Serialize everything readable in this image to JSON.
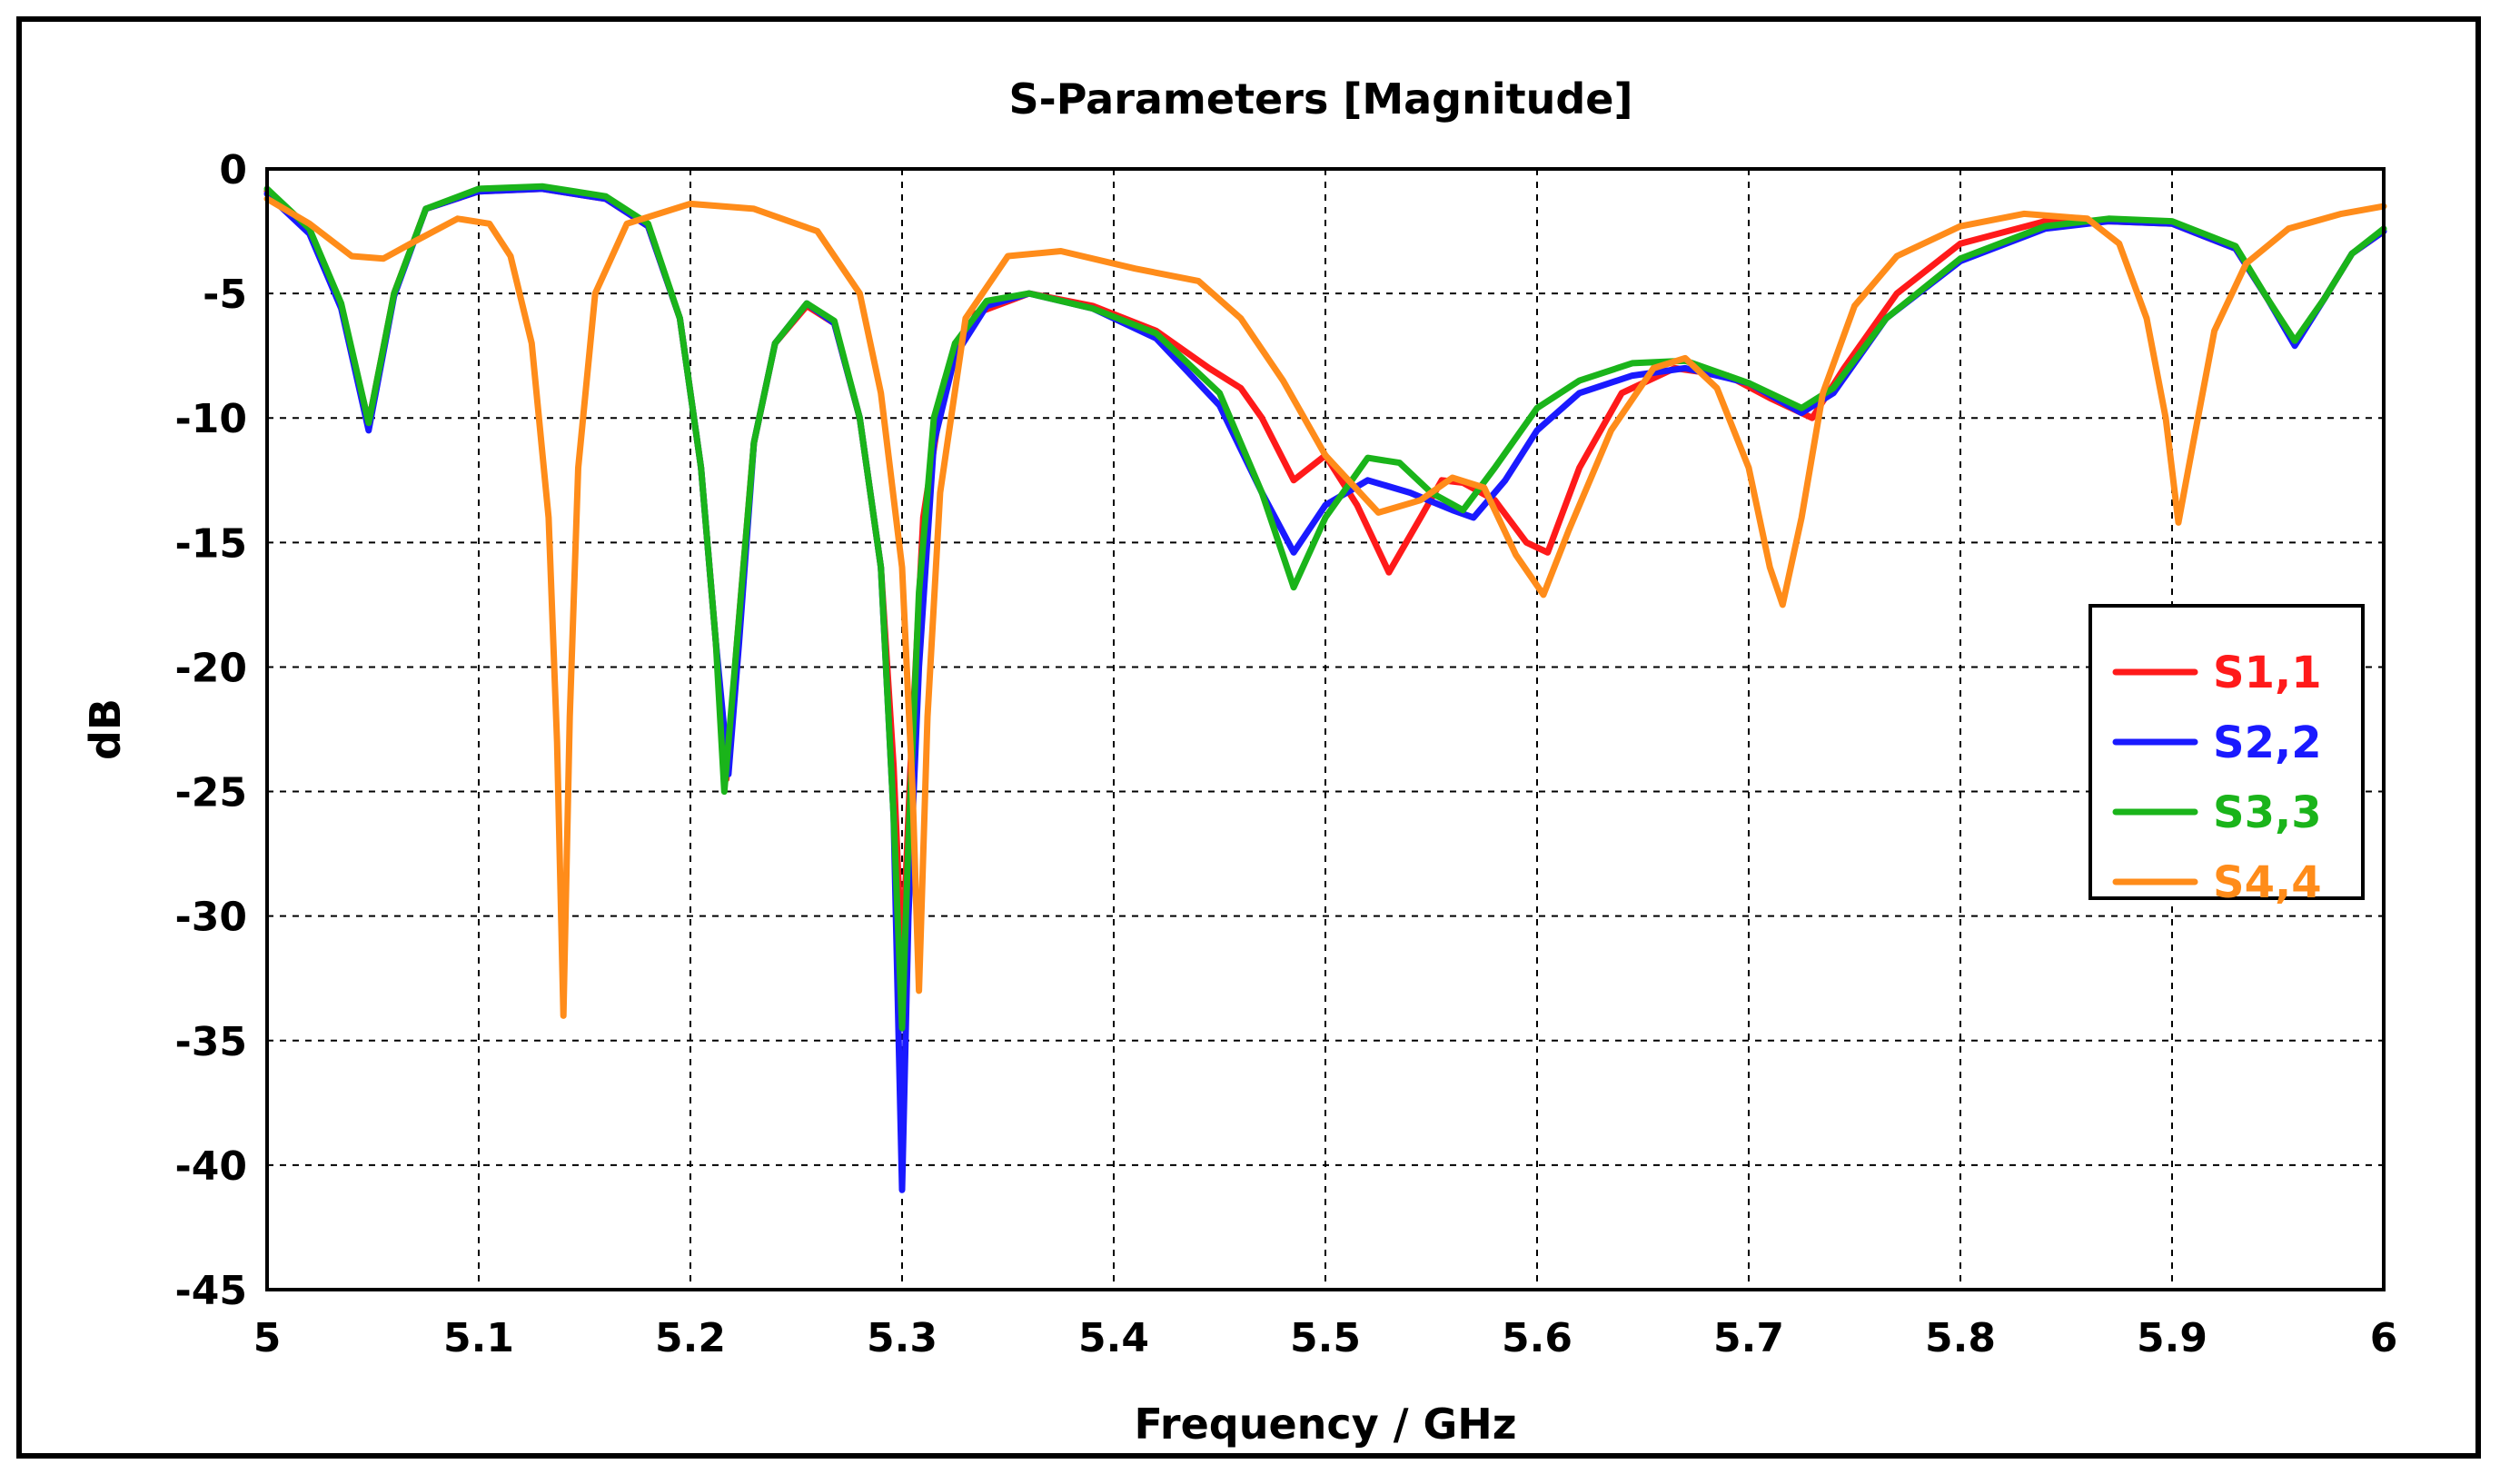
{
  "chart_data": {
    "type": "line",
    "title": "S-Parameters [Magnitude]",
    "xlabel": "Frequency / GHz",
    "ylabel": "dB",
    "xlim": [
      5,
      6
    ],
    "ylim": [
      -45,
      0
    ],
    "xticks": [
      5,
      5.1,
      5.2,
      5.3,
      5.4,
      5.5,
      5.6,
      5.7,
      5.8,
      5.9,
      6
    ],
    "xtick_labels": [
      "5",
      "5.1",
      "5.2",
      "5.3",
      "5.4",
      "5.5",
      "5.6",
      "5.7",
      "5.8",
      "5.9",
      "6"
    ],
    "yticks": [
      0,
      -5,
      -10,
      -15,
      -20,
      -25,
      -30,
      -35,
      -40,
      -45
    ],
    "ytick_labels": [
      "0",
      "-5",
      "-10",
      "-15",
      "-20",
      "-25",
      "-30",
      "-35",
      "-40",
      "-45"
    ],
    "grid": true,
    "legend_position": "right",
    "series": [
      {
        "name": "S1,1",
        "color": "#ff1a1a",
        "points": [
          [
            5,
            -0.9
          ],
          [
            5.02,
            -2.5
          ],
          [
            5.035,
            -5.5
          ],
          [
            5.048,
            -10.2
          ],
          [
            5.06,
            -5
          ],
          [
            5.075,
            -1.6
          ],
          [
            5.1,
            -0.9
          ],
          [
            5.13,
            -0.8
          ],
          [
            5.16,
            -1.2
          ],
          [
            5.18,
            -2.3
          ],
          [
            5.195,
            -6
          ],
          [
            5.205,
            -12
          ],
          [
            5.212,
            -19
          ],
          [
            5.217,
            -24.5
          ],
          [
            5.222,
            -19
          ],
          [
            5.23,
            -11
          ],
          [
            5.24,
            -7
          ],
          [
            5.255,
            -5.5
          ],
          [
            5.268,
            -6.2
          ],
          [
            5.28,
            -10
          ],
          [
            5.29,
            -16
          ],
          [
            5.296,
            -24
          ],
          [
            5.3,
            -32
          ],
          [
            5.304,
            -24
          ],
          [
            5.31,
            -14
          ],
          [
            5.32,
            -8.5
          ],
          [
            5.335,
            -5.8
          ],
          [
            5.36,
            -5
          ],
          [
            5.39,
            -5.5
          ],
          [
            5.42,
            -6.5
          ],
          [
            5.445,
            -8
          ],
          [
            5.46,
            -8.8
          ],
          [
            5.47,
            -10
          ],
          [
            5.485,
            -12.5
          ],
          [
            5.5,
            -11.5
          ],
          [
            5.515,
            -13.5
          ],
          [
            5.53,
            -16.2
          ],
          [
            5.545,
            -14
          ],
          [
            5.555,
            -12.5
          ],
          [
            5.565,
            -12.6
          ],
          [
            5.58,
            -13.3
          ],
          [
            5.595,
            -15
          ],
          [
            5.605,
            -15.4
          ],
          [
            5.62,
            -12
          ],
          [
            5.64,
            -9
          ],
          [
            5.665,
            -8
          ],
          [
            5.69,
            -8.3
          ],
          [
            5.71,
            -9.2
          ],
          [
            5.73,
            -10
          ],
          [
            5.745,
            -8
          ],
          [
            5.77,
            -5
          ],
          [
            5.8,
            -3
          ],
          [
            5.84,
            -2.1
          ],
          [
            5.87,
            -2.1
          ],
          [
            5.9,
            -2.2
          ],
          [
            5.93,
            -3.2
          ],
          [
            5.945,
            -5.2
          ],
          [
            5.958,
            -7
          ],
          [
            5.972,
            -5.2
          ],
          [
            5.985,
            -3.4
          ],
          [
            6,
            -2.5
          ]
        ]
      },
      {
        "name": "S2,2",
        "color": "#1a1aff",
        "points": [
          [
            5,
            -1
          ],
          [
            5.02,
            -2.6
          ],
          [
            5.035,
            -5.6
          ],
          [
            5.048,
            -10.5
          ],
          [
            5.06,
            -5.1
          ],
          [
            5.075,
            -1.6
          ],
          [
            5.1,
            -0.9
          ],
          [
            5.13,
            -0.8
          ],
          [
            5.16,
            -1.2
          ],
          [
            5.18,
            -2.3
          ],
          [
            5.195,
            -6
          ],
          [
            5.205,
            -12
          ],
          [
            5.212,
            -19
          ],
          [
            5.218,
            -24.3
          ],
          [
            5.223,
            -19
          ],
          [
            5.23,
            -11
          ],
          [
            5.24,
            -7
          ],
          [
            5.255,
            -5.4
          ],
          [
            5.268,
            -6.2
          ],
          [
            5.28,
            -10
          ],
          [
            5.29,
            -16
          ],
          [
            5.296,
            -26
          ],
          [
            5.3,
            -41
          ],
          [
            5.303,
            -30
          ],
          [
            5.308,
            -20
          ],
          [
            5.315,
            -11
          ],
          [
            5.325,
            -7.5
          ],
          [
            5.34,
            -5.5
          ],
          [
            5.36,
            -5
          ],
          [
            5.39,
            -5.6
          ],
          [
            5.42,
            -6.8
          ],
          [
            5.45,
            -9.5
          ],
          [
            5.47,
            -13
          ],
          [
            5.485,
            -15.4
          ],
          [
            5.5,
            -13.5
          ],
          [
            5.52,
            -12.5
          ],
          [
            5.54,
            -13
          ],
          [
            5.56,
            -13.7
          ],
          [
            5.57,
            -14
          ],
          [
            5.585,
            -12.5
          ],
          [
            5.6,
            -10.5
          ],
          [
            5.62,
            -9
          ],
          [
            5.645,
            -8.3
          ],
          [
            5.67,
            -8
          ],
          [
            5.7,
            -8.6
          ],
          [
            5.725,
            -9.8
          ],
          [
            5.74,
            -9
          ],
          [
            5.765,
            -6
          ],
          [
            5.8,
            -3.7
          ],
          [
            5.84,
            -2.4
          ],
          [
            5.87,
            -2.1
          ],
          [
            5.9,
            -2.2
          ],
          [
            5.93,
            -3.2
          ],
          [
            5.945,
            -5.2
          ],
          [
            5.958,
            -7.1
          ],
          [
            5.972,
            -5.2
          ],
          [
            5.985,
            -3.4
          ],
          [
            6,
            -2.5
          ]
        ]
      },
      {
        "name": "S3,3",
        "color": "#1ab41a",
        "points": [
          [
            5,
            -0.8
          ],
          [
            5.02,
            -2.4
          ],
          [
            5.035,
            -5.4
          ],
          [
            5.048,
            -10.2
          ],
          [
            5.06,
            -5
          ],
          [
            5.075,
            -1.6
          ],
          [
            5.1,
            -0.8
          ],
          [
            5.13,
            -0.7
          ],
          [
            5.16,
            -1.1
          ],
          [
            5.18,
            -2.2
          ],
          [
            5.195,
            -6
          ],
          [
            5.205,
            -12
          ],
          [
            5.212,
            -19
          ],
          [
            5.216,
            -25
          ],
          [
            5.222,
            -19
          ],
          [
            5.23,
            -11
          ],
          [
            5.24,
            -7
          ],
          [
            5.255,
            -5.4
          ],
          [
            5.268,
            -6.1
          ],
          [
            5.28,
            -10
          ],
          [
            5.29,
            -16
          ],
          [
            5.296,
            -26
          ],
          [
            5.3,
            -34.5
          ],
          [
            5.303,
            -27
          ],
          [
            5.308,
            -17
          ],
          [
            5.315,
            -10
          ],
          [
            5.325,
            -7
          ],
          [
            5.34,
            -5.3
          ],
          [
            5.36,
            -5
          ],
          [
            5.39,
            -5.6
          ],
          [
            5.42,
            -6.6
          ],
          [
            5.45,
            -9
          ],
          [
            5.47,
            -13
          ],
          [
            5.485,
            -16.8
          ],
          [
            5.5,
            -14
          ],
          [
            5.52,
            -11.6
          ],
          [
            5.535,
            -11.8
          ],
          [
            5.55,
            -13
          ],
          [
            5.565,
            -13.7
          ],
          [
            5.58,
            -12
          ],
          [
            5.6,
            -9.6
          ],
          [
            5.62,
            -8.5
          ],
          [
            5.645,
            -7.8
          ],
          [
            5.67,
            -7.7
          ],
          [
            5.7,
            -8.6
          ],
          [
            5.725,
            -9.6
          ],
          [
            5.74,
            -8.8
          ],
          [
            5.765,
            -6
          ],
          [
            5.8,
            -3.6
          ],
          [
            5.84,
            -2.3
          ],
          [
            5.87,
            -2
          ],
          [
            5.9,
            -2.1
          ],
          [
            5.93,
            -3.1
          ],
          [
            5.945,
            -5.2
          ],
          [
            5.958,
            -6.9
          ],
          [
            5.972,
            -5.2
          ],
          [
            5.985,
            -3.4
          ],
          [
            6,
            -2.4
          ]
        ]
      },
      {
        "name": "S4,4",
        "color": "#ff8c1a",
        "points": [
          [
            5,
            -1.2
          ],
          [
            5.02,
            -2.2
          ],
          [
            5.04,
            -3.5
          ],
          [
            5.055,
            -3.6
          ],
          [
            5.07,
            -2.9
          ],
          [
            5.09,
            -2
          ],
          [
            5.105,
            -2.2
          ],
          [
            5.115,
            -3.5
          ],
          [
            5.125,
            -7
          ],
          [
            5.133,
            -14
          ],
          [
            5.137,
            -23
          ],
          [
            5.14,
            -34
          ],
          [
            5.143,
            -22
          ],
          [
            5.147,
            -12
          ],
          [
            5.155,
            -5
          ],
          [
            5.17,
            -2.2
          ],
          [
            5.2,
            -1.4
          ],
          [
            5.23,
            -1.6
          ],
          [
            5.26,
            -2.5
          ],
          [
            5.28,
            -5
          ],
          [
            5.29,
            -9
          ],
          [
            5.3,
            -16
          ],
          [
            5.305,
            -25
          ],
          [
            5.308,
            -33
          ],
          [
            5.312,
            -22
          ],
          [
            5.318,
            -13
          ],
          [
            5.33,
            -6
          ],
          [
            5.35,
            -3.5
          ],
          [
            5.375,
            -3.3
          ],
          [
            5.41,
            -4
          ],
          [
            5.44,
            -4.5
          ],
          [
            5.46,
            -6
          ],
          [
            5.48,
            -8.5
          ],
          [
            5.5,
            -11.5
          ],
          [
            5.525,
            -13.8
          ],
          [
            5.545,
            -13.3
          ],
          [
            5.56,
            -12.4
          ],
          [
            5.575,
            -12.8
          ],
          [
            5.59,
            -15.5
          ],
          [
            5.603,
            -17.1
          ],
          [
            5.615,
            -14.5
          ],
          [
            5.635,
            -10.5
          ],
          [
            5.655,
            -8
          ],
          [
            5.67,
            -7.6
          ],
          [
            5.685,
            -8.8
          ],
          [
            5.7,
            -12
          ],
          [
            5.71,
            -16
          ],
          [
            5.716,
            -17.5
          ],
          [
            5.725,
            -14
          ],
          [
            5.735,
            -9
          ],
          [
            5.75,
            -5.5
          ],
          [
            5.77,
            -3.5
          ],
          [
            5.8,
            -2.3
          ],
          [
            5.83,
            -1.8
          ],
          [
            5.86,
            -2
          ],
          [
            5.875,
            -3
          ],
          [
            5.888,
            -6
          ],
          [
            5.897,
            -10
          ],
          [
            5.903,
            -14.2
          ],
          [
            5.91,
            -11
          ],
          [
            5.92,
            -6.5
          ],
          [
            5.935,
            -3.8
          ],
          [
            5.955,
            -2.4
          ],
          [
            5.98,
            -1.8
          ],
          [
            6,
            -1.5
          ]
        ]
      }
    ]
  }
}
